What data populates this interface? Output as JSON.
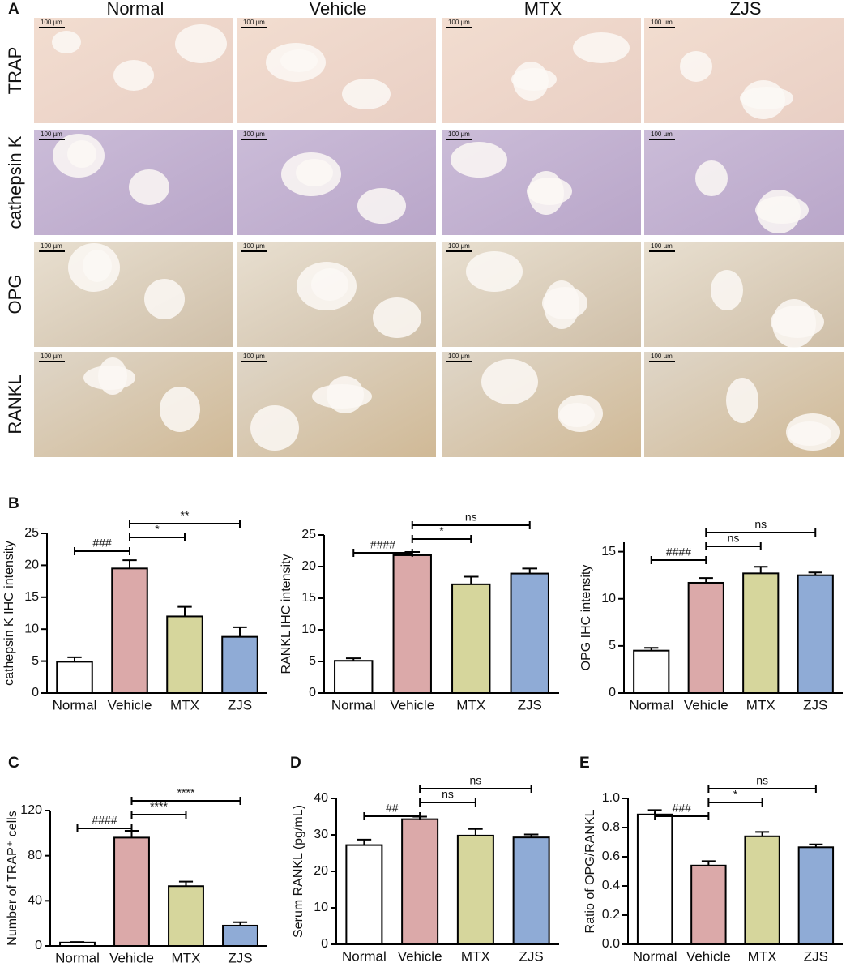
{
  "panel_labels": [
    "A",
    "B",
    "C",
    "D",
    "E"
  ],
  "panel_a": {
    "columns": [
      "Normal",
      "Vehicle",
      "MTX",
      "ZJS"
    ],
    "rows": [
      "TRAP",
      "cathepsin K",
      "OPG",
      "RANKL"
    ],
    "scale_bar": "100 µm"
  },
  "chart_data": [
    {
      "type": "bar",
      "ylabel": "cathepsin K IHC intensity",
      "categories": [
        "Normal",
        "Vehicle",
        "MTX",
        "ZJS"
      ],
      "values": [
        4.9,
        19.5,
        12.0,
        8.8
      ],
      "errors": [
        0.7,
        1.3,
        1.5,
        1.5
      ],
      "colors": [
        "#ffffff",
        "#dba9a9",
        "#d6d69c",
        "#8fabd6"
      ],
      "ylim": [
        0,
        25
      ],
      "yticks": [
        0,
        5,
        10,
        15,
        20,
        25
      ],
      "annotations": [
        {
          "text": "###",
          "from": "Normal",
          "to": "Vehicle"
        },
        {
          "text": "*",
          "from": "Vehicle",
          "to": "MTX"
        },
        {
          "text": "**",
          "from": "Vehicle",
          "to": "ZJS"
        }
      ]
    },
    {
      "type": "bar",
      "ylabel": "RANKL IHC intensity",
      "categories": [
        "Normal",
        "Vehicle",
        "MTX",
        "ZJS"
      ],
      "values": [
        5.1,
        21.8,
        17.2,
        18.9
      ],
      "errors": [
        0.4,
        0.5,
        1.2,
        0.8
      ],
      "colors": [
        "#ffffff",
        "#dba9a9",
        "#d6d69c",
        "#8fabd6"
      ],
      "ylim": [
        0,
        25
      ],
      "yticks": [
        0,
        5,
        10,
        15,
        20,
        25
      ],
      "annotations": [
        {
          "text": "####",
          "from": "Normal",
          "to": "Vehicle"
        },
        {
          "text": "*",
          "from": "Vehicle",
          "to": "MTX"
        },
        {
          "text": "ns",
          "from": "Vehicle",
          "to": "ZJS"
        }
      ]
    },
    {
      "type": "bar",
      "ylabel": "OPG IHC intensity",
      "categories": [
        "Normal",
        "Vehicle",
        "MTX",
        "ZJS"
      ],
      "values": [
        4.5,
        11.7,
        12.7,
        12.5
      ],
      "errors": [
        0.3,
        0.5,
        0.7,
        0.3
      ],
      "colors": [
        "#ffffff",
        "#dba9a9",
        "#d6d69c",
        "#8fabd6"
      ],
      "ylim": [
        0,
        16
      ],
      "yticks": [
        0,
        5,
        10,
        15
      ],
      "annotations": [
        {
          "text": "####",
          "from": "Normal",
          "to": "Vehicle"
        },
        {
          "text": "ns",
          "from": "Vehicle",
          "to": "MTX"
        },
        {
          "text": "ns",
          "from": "Vehicle",
          "to": "ZJS"
        }
      ]
    },
    {
      "type": "bar",
      "ylabel": "Number of TRAP⁺ cells",
      "categories": [
        "Normal",
        "Vehicle",
        "MTX",
        "ZJS"
      ],
      "values": [
        3,
        96,
        53,
        18
      ],
      "errors": [
        0.5,
        6,
        4,
        3
      ],
      "colors": [
        "#ffffff",
        "#dba9a9",
        "#d6d69c",
        "#8fabd6"
      ],
      "ylim": [
        0,
        120
      ],
      "yticks": [
        0,
        40,
        80,
        120
      ],
      "annotations": [
        {
          "text": "####",
          "from": "Normal",
          "to": "Vehicle"
        },
        {
          "text": "****",
          "from": "Vehicle",
          "to": "MTX"
        },
        {
          "text": "****",
          "from": "Vehicle",
          "to": "ZJS"
        }
      ]
    },
    {
      "type": "bar",
      "ylabel": "Serum RANKL (pg/mL)",
      "categories": [
        "Normal",
        "Vehicle",
        "MTX",
        "ZJS"
      ],
      "values": [
        27.2,
        34.3,
        29.8,
        29.3
      ],
      "errors": [
        1.5,
        0.7,
        1.8,
        0.8
      ],
      "colors": [
        "#ffffff",
        "#dba9a9",
        "#d6d69c",
        "#8fabd6"
      ],
      "ylim": [
        0,
        40
      ],
      "yticks": [
        0,
        10,
        20,
        30,
        40
      ],
      "annotations": [
        {
          "text": "##",
          "from": "Normal",
          "to": "Vehicle"
        },
        {
          "text": "ns",
          "from": "Vehicle",
          "to": "MTX"
        },
        {
          "text": "ns",
          "from": "Vehicle",
          "to": "ZJS"
        }
      ]
    },
    {
      "type": "bar",
      "ylabel": "Ratio of OPG/RANKL",
      "categories": [
        "Normal",
        "Vehicle",
        "MTX",
        "ZJS"
      ],
      "values": [
        0.89,
        0.54,
        0.74,
        0.665
      ],
      "errors": [
        0.03,
        0.03,
        0.03,
        0.02
      ],
      "colors": [
        "#ffffff",
        "#dba9a9",
        "#d6d69c",
        "#8fabd6"
      ],
      "ylim": [
        0,
        1.0
      ],
      "yticks": [
        {
          "value": 0,
          "label": "0.0"
        },
        0.2,
        0.4,
        0.6,
        0.8,
        {
          "value": 1,
          "label": "1.0"
        }
      ],
      "annotations": [
        {
          "text": "###",
          "from": "Normal",
          "to": "Vehicle"
        },
        {
          "text": "*",
          "from": "Vehicle",
          "to": "MTX"
        },
        {
          "text": "ns",
          "from": "Vehicle",
          "to": "ZJS"
        }
      ]
    }
  ]
}
